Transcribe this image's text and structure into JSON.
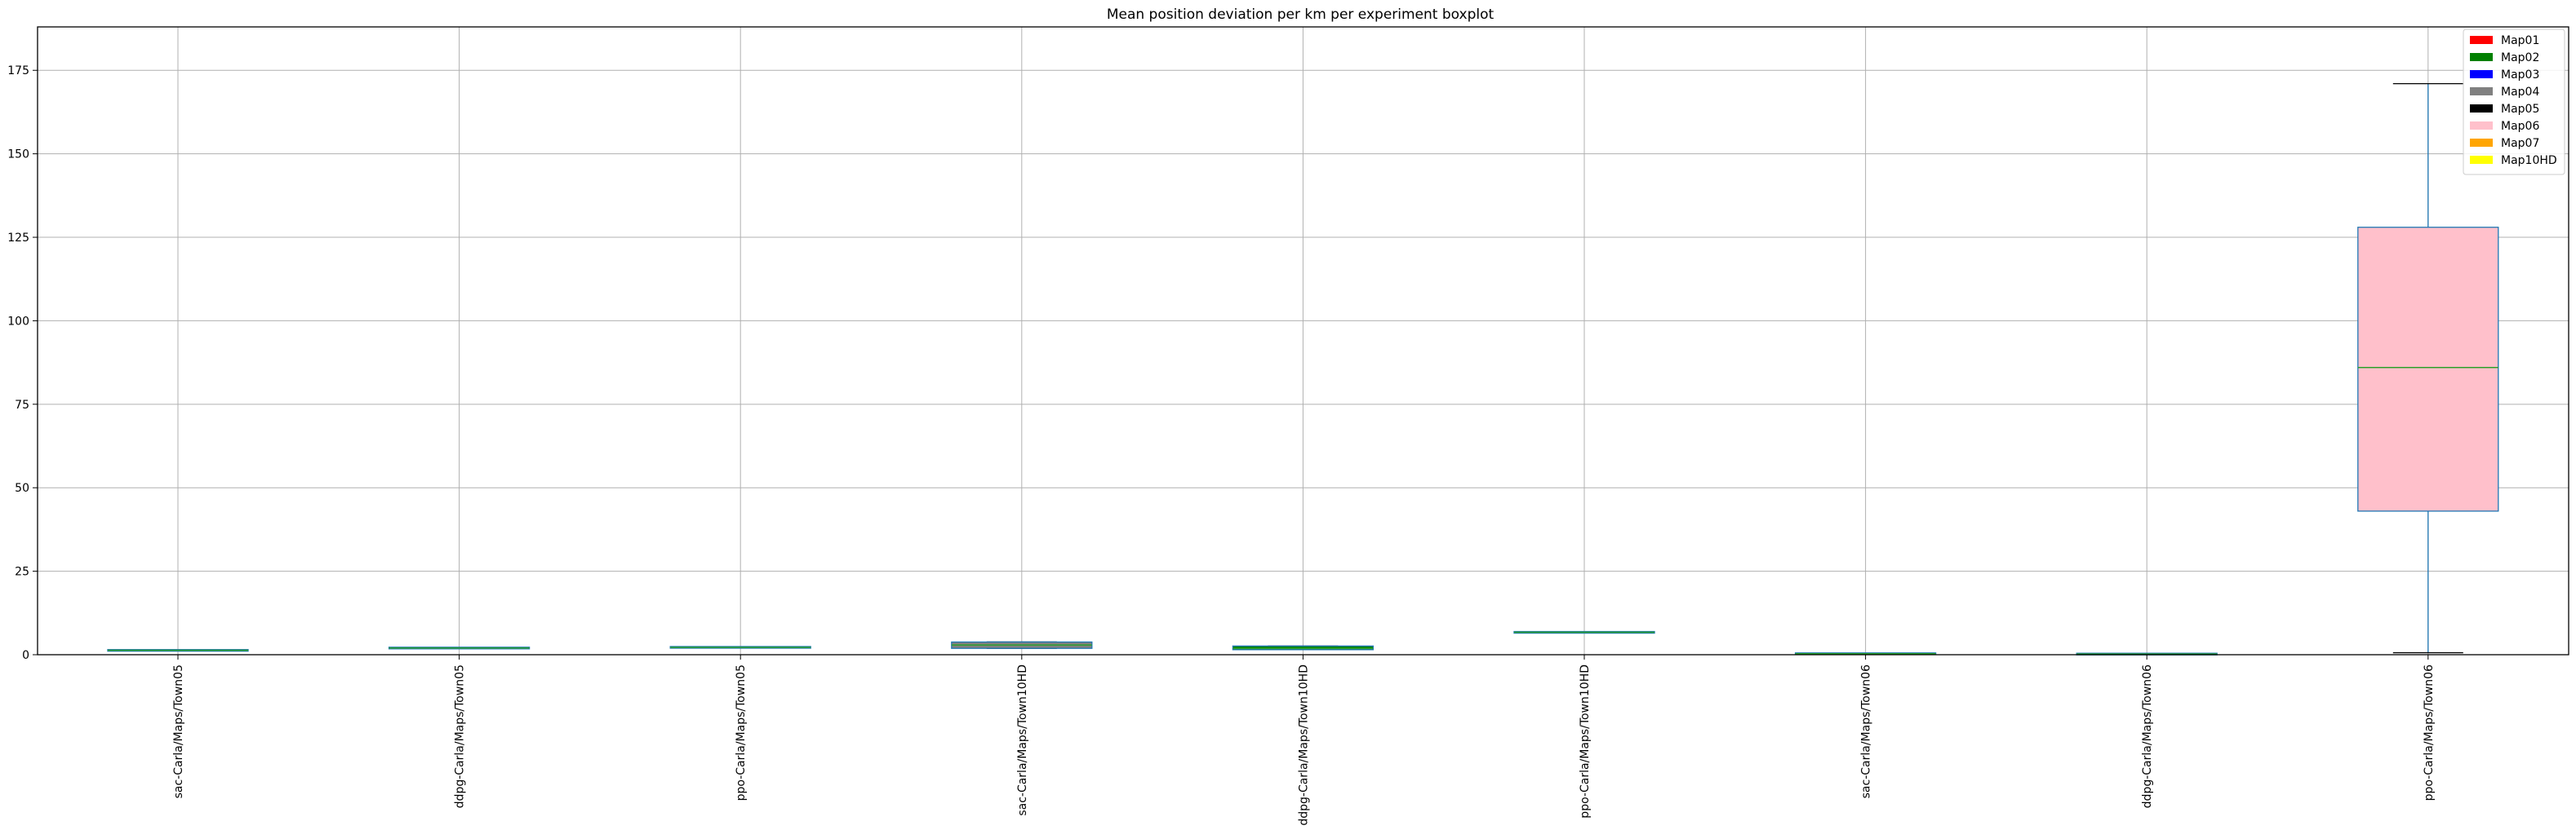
{
  "chart_data": {
    "type": "box",
    "title": "Mean position deviation per km per experiment boxplot",
    "xlabel": "",
    "ylabel": "",
    "ylim": [
      0,
      188
    ],
    "yticks": [
      0,
      25,
      50,
      75,
      100,
      125,
      150,
      175
    ],
    "grid": true,
    "legend_position": "top-right",
    "legend": [
      {
        "name": "Map01",
        "color": "#ff0000"
      },
      {
        "name": "Map02",
        "color": "#008000"
      },
      {
        "name": "Map03",
        "color": "#0000ff"
      },
      {
        "name": "Map04",
        "color": "#808080"
      },
      {
        "name": "Map05",
        "color": "#000000"
      },
      {
        "name": "Map06",
        "color": "#ffc0cb"
      },
      {
        "name": "Map07",
        "color": "#ffa500"
      },
      {
        "name": "Map10HD",
        "color": "#ffff00"
      }
    ],
    "categories": [
      "sac-Carla/Maps/Town05",
      "ddpg-Carla/Maps/Town05",
      "ppo-Carla/Maps/Town05",
      "sac-Carla/Maps/Town10HD",
      "ddpg-Carla/Maps/Town10HD",
      "ppo-Carla/Maps/Town10HD",
      "sac-Carla/Maps/Town06",
      "ddpg-Carla/Maps/Town06",
      "ppo-Carla/Maps/Town06"
    ],
    "boxes": [
      {
        "min": 1.2,
        "q1": 1.2,
        "median": 1.3,
        "q3": 1.3,
        "max": 1.3,
        "color": "#000000"
      },
      {
        "min": 1.9,
        "q1": 1.9,
        "median": 2.0,
        "q3": 2.0,
        "max": 2.0,
        "color": "#000000"
      },
      {
        "min": 2.2,
        "q1": 2.2,
        "median": 2.2,
        "q3": 2.2,
        "max": 2.2,
        "color": "#000000"
      },
      {
        "min": 1.9,
        "q1": 1.9,
        "median": 2.9,
        "q3": 3.8,
        "max": 3.8,
        "color": "#808080"
      },
      {
        "min": 1.5,
        "q1": 1.5,
        "median": 1.9,
        "q3": 2.6,
        "max": 2.6,
        "color": "#008000"
      },
      {
        "min": 6.7,
        "q1": 6.7,
        "median": 6.7,
        "q3": 6.7,
        "max": 6.7,
        "color": "#000000"
      },
      {
        "min": 0.3,
        "q1": 0.3,
        "median": 0.3,
        "q3": 0.3,
        "max": 0.3,
        "color": "#008000"
      },
      {
        "min": 0.2,
        "q1": 0.2,
        "median": 0.2,
        "q3": 0.2,
        "max": 0.2,
        "color": "#008000"
      },
      {
        "min": 0.6,
        "q1": 43.0,
        "median": 86.0,
        "q3": 128.0,
        "max": 171.0,
        "color": "#ffc0cb"
      }
    ]
  }
}
